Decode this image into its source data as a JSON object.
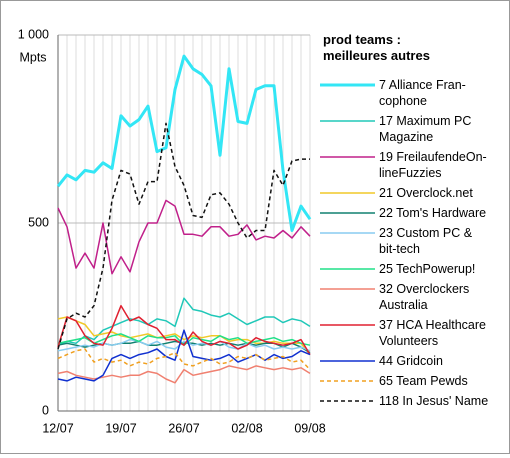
{
  "chart_data": {
    "type": "line",
    "y_unit": "Mpts",
    "legend_title": "prod teams :\nmeilleures autres",
    "categories": [
      "12/07",
      null,
      null,
      null,
      null,
      null,
      null,
      "19/07",
      null,
      null,
      null,
      null,
      null,
      null,
      "26/07",
      null,
      null,
      null,
      null,
      null,
      null,
      "02/08",
      null,
      null,
      null,
      null,
      null,
      null,
      "09/08"
    ],
    "ylim": [
      0,
      1000
    ],
    "yticks": [
      0,
      500,
      {
        "value": 1000,
        "label": "1 000"
      }
    ],
    "grid": true,
    "legend": "right",
    "series": [
      {
        "name": "7 Alliance Fran-\ncophone",
        "color": "#33e6f5",
        "width": 3,
        "dashed": false,
        "values": [
          598,
          628,
          615,
          640,
          635,
          660,
          645,
          785,
          758,
          775,
          811,
          690,
          700,
          855,
          944,
          910,
          895,
          865,
          680,
          910,
          770,
          765,
          855,
          865,
          865,
          640,
          480,
          545,
          510
        ]
      },
      {
        "name": "17 Maximum PC\nMagazine",
        "color": "#20c8b8",
        "width": 1.5,
        "dashed": false,
        "values": [
          175,
          185,
          180,
          200,
          190,
          215,
          225,
          235,
          245,
          240,
          230,
          245,
          240,
          225,
          300,
          270,
          265,
          255,
          250,
          260,
          245,
          230,
          240,
          250,
          250,
          235,
          245,
          240,
          225
        ]
      },
      {
        "name": "19 FreilaufendeOn-\nlineFuzzies",
        "color": "#c0208a",
        "width": 1.5,
        "dashed": false,
        "values": [
          540,
          490,
          380,
          420,
          380,
          500,
          365,
          410,
          370,
          450,
          500,
          500,
          560,
          545,
          470,
          470,
          465,
          490,
          490,
          465,
          470,
          495,
          455,
          465,
          460,
          480,
          460,
          490,
          465
        ]
      },
      {
        "name": "21 Overclock.net",
        "color": "#f0c828",
        "width": 1.5,
        "dashed": false,
        "values": [
          245,
          250,
          240,
          230,
          200,
          205,
          210,
          200,
          195,
          200,
          205,
          195,
          200,
          205,
          190,
          200,
          195,
          200,
          200,
          185,
          190,
          190,
          180,
          180,
          185,
          180,
          180,
          180,
          150
        ]
      },
      {
        "name": "22 Tom's Hardware",
        "color": "#108070",
        "width": 1.5,
        "dashed": false,
        "values": [
          175,
          180,
          175,
          170,
          175,
          180,
          175,
          180,
          180,
          185,
          175,
          175,
          180,
          185,
          180,
          180,
          175,
          180,
          175,
          180,
          175,
          180,
          175,
          180,
          180,
          170,
          180,
          170,
          155
        ]
      },
      {
        "name": "23 Custom PC &\nbit-tech",
        "color": "#88ccf0",
        "width": 1.5,
        "dashed": false,
        "values": [
          160,
          165,
          170,
          175,
          170,
          180,
          175,
          180,
          190,
          185,
          175,
          185,
          170,
          165,
          185,
          175,
          180,
          175,
          185,
          170,
          165,
          180,
          170,
          175,
          165,
          170,
          165,
          170,
          160
        ]
      },
      {
        "name": "25 TechPowerup!",
        "color": "#20e088",
        "width": 1.5,
        "dashed": false,
        "values": [
          180,
          185,
          190,
          195,
          180,
          190,
          200,
          205,
          195,
          185,
          200,
          195,
          195,
          200,
          175,
          195,
          190,
          185,
          200,
          190,
          195,
          180,
          185,
          190,
          195,
          185,
          190,
          180,
          175
        ]
      },
      {
        "name": "32 Overclockers\nAustralia",
        "color": "#f08070",
        "width": 1.5,
        "dashed": false,
        "values": [
          100,
          105,
          95,
          90,
          85,
          90,
          95,
          90,
          95,
          95,
          105,
          100,
          85,
          75,
          110,
          95,
          100,
          105,
          110,
          120,
          115,
          110,
          120,
          115,
          110,
          115,
          110,
          115,
          100
        ]
      },
      {
        "name": "37 HCA Healthcare\nVolunteers",
        "color": "#e02030",
        "width": 1.5,
        "dashed": false,
        "values": [
          170,
          250,
          240,
          200,
          180,
          175,
          220,
          280,
          240,
          250,
          230,
          220,
          190,
          190,
          175,
          210,
          185,
          175,
          185,
          180,
          165,
          175,
          195,
          185,
          180,
          175,
          180,
          190,
          150
        ]
      },
      {
        "name": "44 Gridcoin",
        "color": "#1030d0",
        "width": 1.5,
        "dashed": false,
        "values": [
          85,
          80,
          90,
          85,
          80,
          95,
          140,
          150,
          140,
          150,
          155,
          165,
          145,
          135,
          215,
          145,
          140,
          135,
          140,
          150,
          130,
          140,
          150,
          135,
          150,
          140,
          145,
          160,
          150
        ]
      },
      {
        "name": "65 Team Pewds",
        "color": "#f0a020",
        "width": 1.5,
        "dashed": true,
        "values": [
          140,
          150,
          160,
          165,
          130,
          140,
          130,
          135,
          120,
          130,
          125,
          140,
          145,
          155,
          125,
          120,
          130,
          140,
          125,
          130,
          145,
          140,
          150,
          135,
          140,
          145,
          130,
          135,
          110
        ]
      },
      {
        "name": "118 In Jesus' Name",
        "color": "#111111",
        "width": 1.5,
        "dashed": true,
        "values": [
          165,
          245,
          260,
          250,
          280,
          380,
          560,
          640,
          630,
          550,
          610,
          610,
          765,
          650,
          600,
          520,
          515,
          575,
          580,
          550,
          500,
          460,
          480,
          480,
          640,
          600,
          665,
          670,
          670
        ]
      }
    ]
  }
}
